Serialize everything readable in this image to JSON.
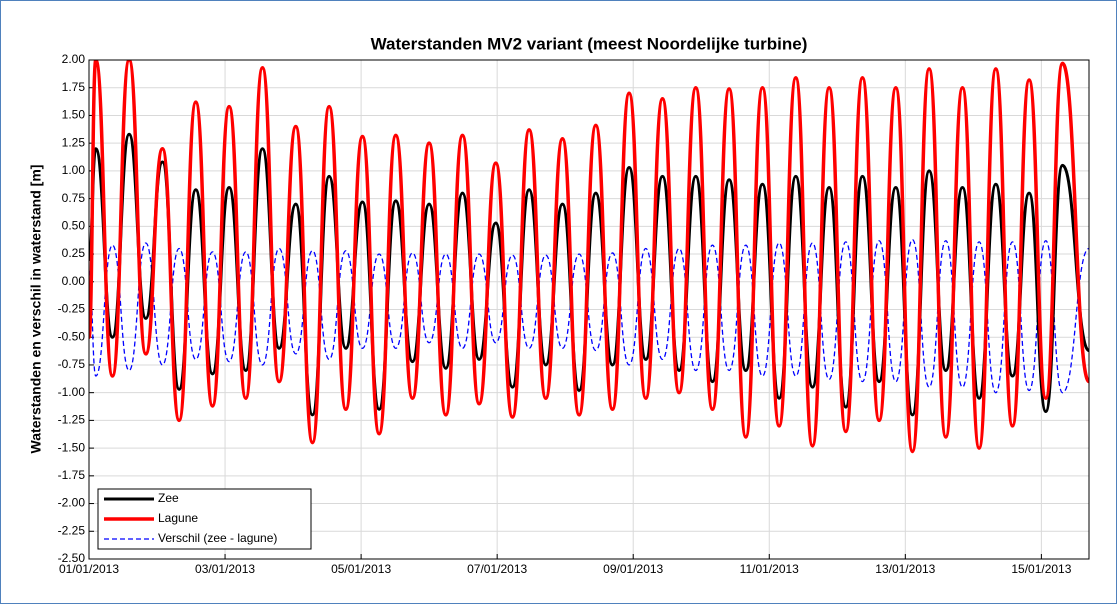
{
  "chart_data": {
    "type": "line",
    "title": "Waterstanden MV2 variant (meest Noordelijke turbine)",
    "y_label": "Waterstanden en verschil in waterstand [m]",
    "xlim": [
      0,
      14.7
    ],
    "xticks": [
      {
        "value": 0,
        "label": "01/01/2013"
      },
      {
        "value": 2,
        "label": "03/01/2013"
      },
      {
        "value": 4,
        "label": "05/01/2013"
      },
      {
        "value": 6,
        "label": "07/01/2013"
      },
      {
        "value": 8,
        "label": "09/01/2013"
      },
      {
        "value": 10,
        "label": "11/01/2013"
      },
      {
        "value": 12,
        "label": "13/01/2013"
      },
      {
        "value": 14,
        "label": "15/01/2013"
      }
    ],
    "ylim": [
      -2.5,
      2.0
    ],
    "yticks": [
      {
        "value": -2.5,
        "label": "-2.50"
      },
      {
        "value": -2.25,
        "label": "-2.25"
      },
      {
        "value": -2.0,
        "label": "-2.00"
      },
      {
        "value": -1.75,
        "label": "-1.75"
      },
      {
        "value": -1.5,
        "label": "-1.50"
      },
      {
        "value": -1.25,
        "label": "-1.25"
      },
      {
        "value": -1.0,
        "label": "-1.00"
      },
      {
        "value": -0.75,
        "label": "-0.75"
      },
      {
        "value": -0.5,
        "label": "-0.50"
      },
      {
        "value": -0.25,
        "label": "-0.25"
      },
      {
        "value": 0,
        "label": "0.00"
      },
      {
        "value": 0.25,
        "label": "0.25"
      },
      {
        "value": 0.5,
        "label": "0.50"
      },
      {
        "value": 0.75,
        "label": "0.75"
      },
      {
        "value": 1.0,
        "label": "1.00"
      },
      {
        "value": 1.25,
        "label": "1.25"
      },
      {
        "value": 1.5,
        "label": "1.50"
      },
      {
        "value": 1.75,
        "label": "1.75"
      },
      {
        "value": 2.0,
        "label": "2.00"
      }
    ],
    "grid": true,
    "legend": "lower left",
    "x": [
      0,
      0.1,
      0.345,
      0.59,
      0.835,
      1.08,
      1.325,
      1.57,
      1.815,
      2.06,
      2.305,
      2.55,
      2.795,
      3.04,
      3.285,
      3.53,
      3.775,
      4.02,
      4.265,
      4.51,
      4.755,
      5.0,
      5.245,
      5.49,
      5.735,
      5.98,
      6.225,
      6.47,
      6.715,
      6.96,
      7.205,
      7.45,
      7.695,
      7.94,
      8.185,
      8.43,
      8.675,
      8.92,
      9.165,
      9.41,
      9.655,
      9.9,
      10.145,
      10.39,
      10.635,
      10.88,
      11.125,
      11.37,
      11.615,
      11.86,
      12.105,
      12.35,
      12.595,
      12.84,
      13.085,
      13.33,
      13.575,
      13.82,
      14.065,
      14.31,
      14.7
    ],
    "series": [
      {
        "name": "Zee",
        "color": "#000000",
        "width": 3,
        "dash": "solid",
        "values": [
          0.2,
          1.2,
          -0.5,
          1.33,
          -0.33,
          1.08,
          -0.97,
          0.83,
          -0.83,
          0.85,
          -0.8,
          1.2,
          -0.6,
          0.7,
          -1.2,
          0.95,
          -0.6,
          0.72,
          -1.15,
          0.73,
          -0.72,
          0.7,
          -0.78,
          0.8,
          -0.7,
          0.53,
          -0.95,
          0.83,
          -0.75,
          0.7,
          -0.98,
          0.8,
          -0.75,
          1.03,
          -0.7,
          0.95,
          -0.8,
          0.95,
          -0.9,
          0.92,
          -0.8,
          0.88,
          -1.05,
          0.95,
          -0.95,
          0.85,
          -1.13,
          0.95,
          -0.9,
          0.85,
          -1.2,
          1.0,
          -0.8,
          0.85,
          -1.05,
          0.88,
          -0.85,
          0.8,
          -1.17,
          1.05,
          -0.62
        ]
      },
      {
        "name": "Lagune",
        "color": "#ff0000",
        "width": 3.5,
        "dash": "solid",
        "values": [
          -0.5,
          2.0,
          -0.85,
          2.0,
          -0.65,
          1.2,
          -1.25,
          1.62,
          -1.12,
          1.58,
          -1.05,
          1.93,
          -0.9,
          1.4,
          -1.45,
          1.58,
          -1.15,
          1.31,
          -1.37,
          1.32,
          -1.05,
          1.25,
          -1.2,
          1.32,
          -1.1,
          1.07,
          -1.22,
          1.37,
          -1.05,
          1.29,
          -1.2,
          1.41,
          -1.15,
          1.7,
          -1.05,
          1.65,
          -1.0,
          1.75,
          -1.15,
          1.74,
          -1.4,
          1.75,
          -1.3,
          1.84,
          -1.48,
          1.75,
          -1.35,
          1.84,
          -1.25,
          1.75,
          -1.53,
          1.92,
          -1.4,
          1.75,
          -1.5,
          1.92,
          -1.3,
          1.82,
          -1.05,
          1.97,
          -0.9
        ]
      },
      {
        "name": "Verschil (zee - lagune)",
        "color": "#0000ff",
        "width": 1.3,
        "dash": "dashed",
        "values": [
          0.1,
          -0.85,
          0.33,
          -0.8,
          0.35,
          -0.75,
          0.3,
          -0.7,
          0.27,
          -0.72,
          0.27,
          -0.75,
          0.3,
          -0.65,
          0.28,
          -0.7,
          0.28,
          -0.6,
          0.25,
          -0.6,
          0.26,
          -0.55,
          0.25,
          -0.6,
          0.25,
          -0.55,
          0.24,
          -0.6,
          0.24,
          -0.6,
          0.25,
          -0.62,
          0.26,
          -0.75,
          0.3,
          -0.7,
          0.3,
          -0.8,
          0.33,
          -0.8,
          0.33,
          -0.85,
          0.35,
          -0.85,
          0.35,
          -0.88,
          0.36,
          -0.9,
          0.37,
          -0.9,
          0.38,
          -0.95,
          0.37,
          -0.95,
          0.36,
          -1.0,
          0.36,
          -0.98,
          0.37,
          -1.0,
          0.3
        ]
      }
    ]
  }
}
